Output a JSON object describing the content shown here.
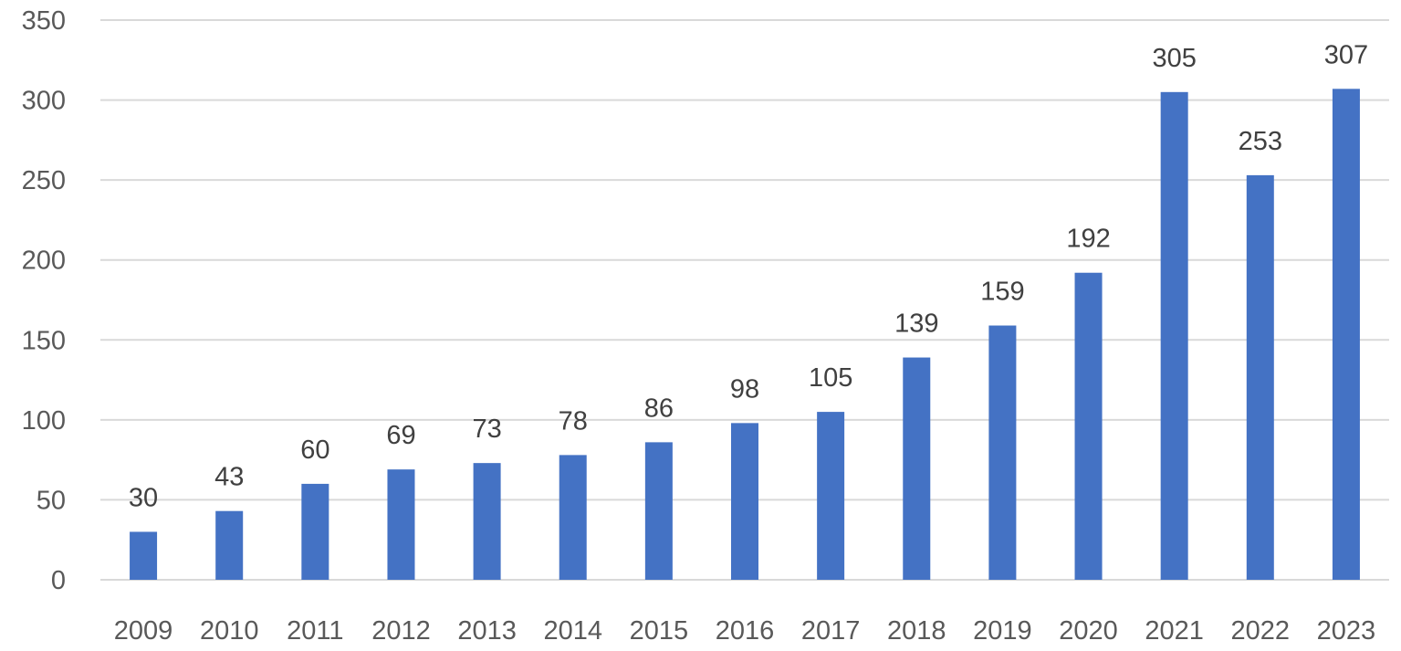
{
  "chart_data": {
    "type": "bar",
    "title": "",
    "xlabel": "",
    "ylabel": "",
    "categories": [
      "2009",
      "2010",
      "2011",
      "2012",
      "2013",
      "2014",
      "2015",
      "2016",
      "2017",
      "2018",
      "2019",
      "2020",
      "2021",
      "2022",
      "2023"
    ],
    "values": [
      30,
      43,
      60,
      69,
      73,
      78,
      86,
      98,
      105,
      139,
      159,
      192,
      305,
      253,
      307
    ],
    "ylim": [
      0,
      350
    ],
    "yticks": [
      0,
      50,
      100,
      150,
      200,
      250,
      300,
      350
    ],
    "grid": true,
    "legend": "none",
    "data_labels": true,
    "colors": {
      "bar": "#4472c4",
      "grid": "#d9d9d9",
      "tick_text": "#595959",
      "label_text": "#404040"
    }
  }
}
